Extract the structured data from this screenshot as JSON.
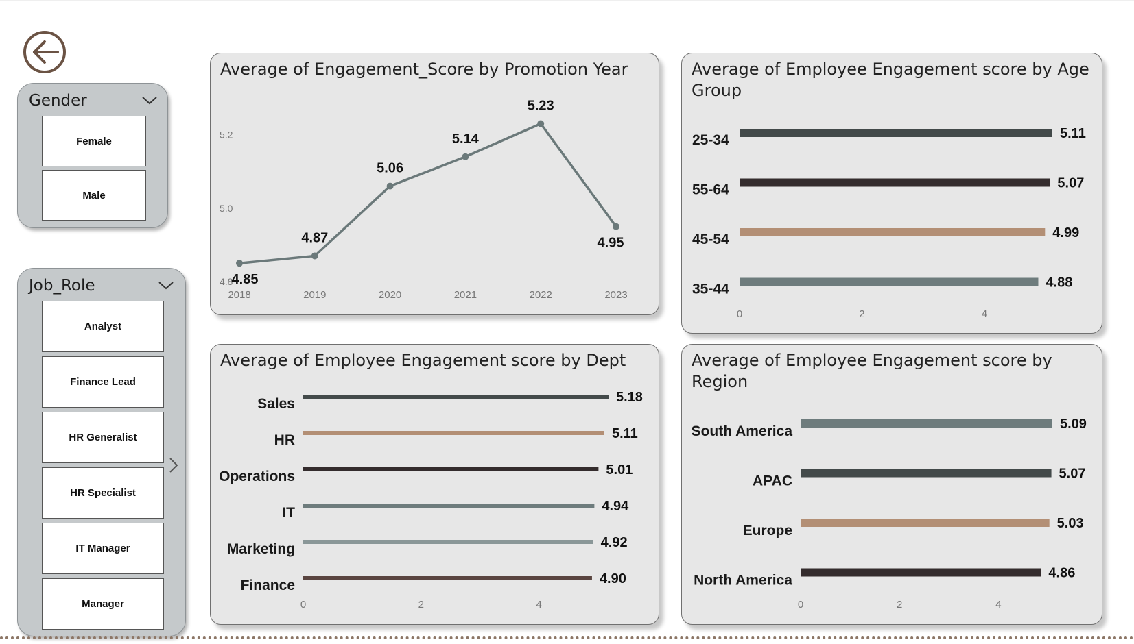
{
  "colors": {
    "dark_slate": "#434a4a",
    "near_black": "#342c2d",
    "tan": "#b38f75",
    "slate_grey": "#6e7c7d",
    "light_slate": "#8a9798",
    "brown": "#5a4540",
    "line": "#6b797a",
    "slicer_bg": "#c5c9cb",
    "card_bg": "#e7e7e7",
    "accent_brown": "#6b5344"
  },
  "back_button": {
    "icon": "arrow-left-icon"
  },
  "gender_slicer": {
    "title": "Gender",
    "items": [
      "Female",
      "Male"
    ]
  },
  "job_slicer": {
    "title": "Job_Role",
    "items": [
      "Analyst",
      "Finance Lead",
      "HR Generalist",
      "HR Specialist",
      "IT Manager",
      "Manager"
    ]
  },
  "chart_data": [
    {
      "id": "promotion",
      "type": "line",
      "title": "Average of Engagement_Score by Promotion Year",
      "x": [
        "2018",
        "2019",
        "2020",
        "2021",
        "2022",
        "2023"
      ],
      "values": [
        4.85,
        4.87,
        5.06,
        5.14,
        5.23,
        4.95
      ],
      "labels": [
        "4.85",
        "4.87",
        "5.06",
        "5.14",
        "5.23",
        "4.95"
      ],
      "yticks": [
        "4.8",
        "5.0",
        "5.2"
      ],
      "ylim": [
        4.8,
        5.3
      ],
      "color": "#6b797a"
    },
    {
      "id": "age",
      "type": "bar",
      "orientation": "horizontal",
      "title": "Average of Employee Engagement score by Age Group",
      "categories": [
        "25-34",
        "55-64",
        "45-54",
        "35-44"
      ],
      "values": [
        5.11,
        5.07,
        4.99,
        4.88
      ],
      "labels": [
        "5.11",
        "5.07",
        "4.99",
        "4.88"
      ],
      "colors": [
        "#434a4a",
        "#342c2d",
        "#b38f75",
        "#6e7c7d"
      ],
      "xticks": [
        "0",
        "2",
        "4"
      ],
      "xlim": [
        0,
        5.11
      ]
    },
    {
      "id": "dept",
      "type": "bar",
      "orientation": "horizontal",
      "title": "Average of Employee Engagement score by Dept",
      "categories": [
        "Sales",
        "HR",
        "Operations",
        "IT",
        "Marketing",
        "Finance"
      ],
      "values": [
        5.18,
        5.11,
        5.01,
        4.94,
        4.92,
        4.9
      ],
      "labels": [
        "5.18",
        "5.11",
        "5.01",
        "4.94",
        "4.92",
        "4.90"
      ],
      "colors": [
        "#434a4a",
        "#b38f75",
        "#342c2d",
        "#6e7c7d",
        "#8a9798",
        "#5a4540"
      ],
      "xticks": [
        "0",
        "2",
        "4"
      ],
      "xlim": [
        0,
        5.18
      ]
    },
    {
      "id": "region",
      "type": "bar",
      "orientation": "horizontal",
      "title": "Average of Employee Engagement score by Region",
      "categories": [
        "South America",
        "APAC",
        "Europe",
        "North America"
      ],
      "values": [
        5.09,
        5.07,
        5.03,
        4.86
      ],
      "labels": [
        "5.09",
        "5.07",
        "5.03",
        "4.86"
      ],
      "colors": [
        "#6e7c7d",
        "#434a4a",
        "#b38f75",
        "#342c2d"
      ],
      "xticks": [
        "0",
        "2",
        "4"
      ],
      "xlim": [
        0,
        5.09
      ]
    }
  ]
}
